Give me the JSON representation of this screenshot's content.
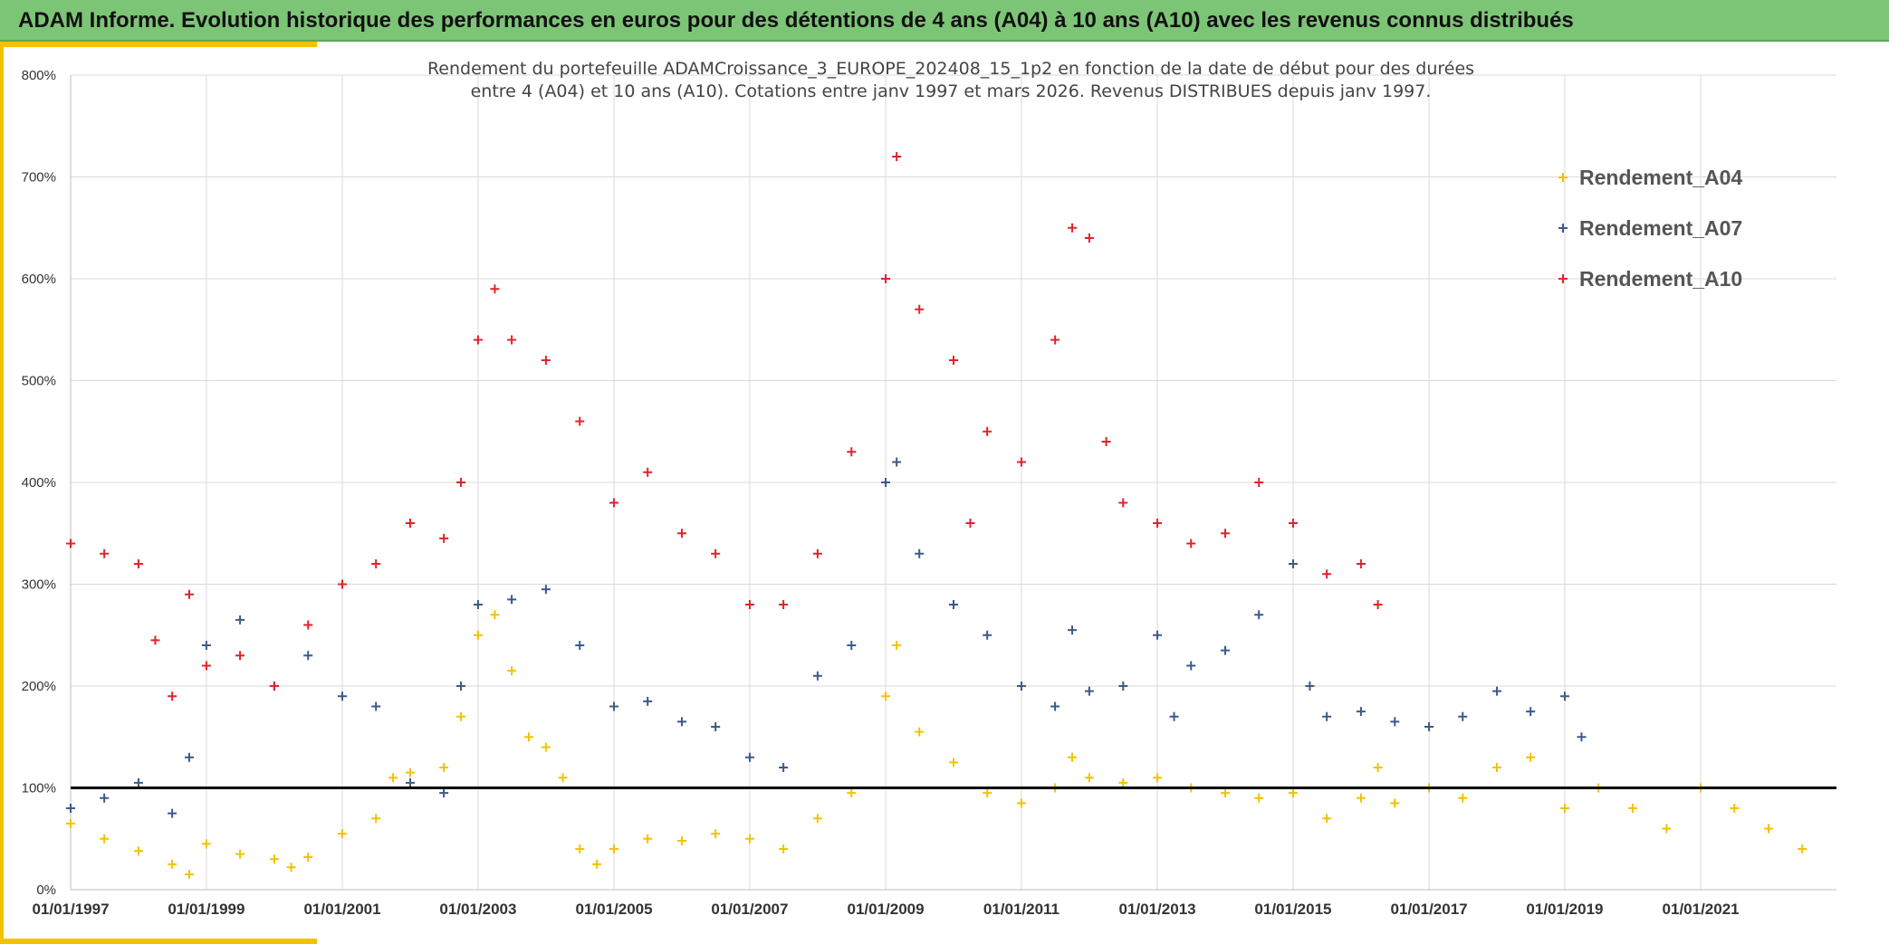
{
  "header": {
    "title": "ADAM Informe. Evolution historique des performances en euros pour des détentions de 4 ans (A04) à 10 ans (A10) avec les revenus connus distribués"
  },
  "colors": {
    "banner": "#7cc576",
    "accent": "#f2c200",
    "A04": "#f2c200",
    "A07": "#3c5a8a",
    "A10": "#e0242a",
    "reference_line": "#000000"
  },
  "chart_data": {
    "type": "scatter",
    "title_line1": "Rendement du portefeuille ADAMCroissance_3_EUROPE_202408_15_1p2  en fonction de la date de début pour des durées",
    "title_line2": "entre 4 (A04) et 10 ans (A10). Cotations entre janv 1997 et mars 2026. Revenus DISTRIBUES depuis janv 1997.",
    "x_axis": {
      "type": "date",
      "min": "1997-01-01",
      "max": "2023-01-01",
      "tick_labels": [
        "01/01/1997",
        "01/01/1999",
        "01/01/2001",
        "01/01/2003",
        "01/01/2005",
        "01/01/2007",
        "01/01/2009",
        "01/01/2011",
        "01/01/2013",
        "01/01/2015",
        "01/01/2017",
        "01/01/2019",
        "01/01/2021"
      ],
      "tick_dates": [
        "1997-01-01",
        "1999-01-01",
        "2001-01-01",
        "2003-01-01",
        "2005-01-01",
        "2007-01-01",
        "2009-01-01",
        "2011-01-01",
        "2013-01-01",
        "2015-01-01",
        "2017-01-01",
        "2019-01-01",
        "2021-01-01"
      ]
    },
    "y_axis": {
      "min": 0,
      "max": 800,
      "unit": "%",
      "tick_values": [
        0,
        100,
        200,
        300,
        400,
        500,
        600,
        700,
        800
      ],
      "tick_labels": [
        "0%",
        "100%",
        "200%",
        "300%",
        "400%",
        "500%",
        "600%",
        "700%",
        "800%"
      ]
    },
    "grid": true,
    "legend_position": "top-right",
    "reference_line": {
      "y": 100
    },
    "marker": "+",
    "series": [
      {
        "name": "Rendement_A04",
        "x": [
          "1997-01-01",
          "1997-07-01",
          "1998-01-01",
          "1998-07-01",
          "1998-10-01",
          "1999-01-01",
          "1999-07-01",
          "2000-01-01",
          "2000-04-01",
          "2000-07-01",
          "2001-01-01",
          "2001-07-01",
          "2001-10-01",
          "2002-01-01",
          "2002-07-01",
          "2002-10-01",
          "2003-01-01",
          "2003-04-01",
          "2003-07-01",
          "2003-10-01",
          "2004-01-01",
          "2004-04-01",
          "2004-07-01",
          "2004-10-01",
          "2005-01-01",
          "2005-07-01",
          "2006-01-01",
          "2006-07-01",
          "2007-01-01",
          "2007-07-01",
          "2008-01-01",
          "2008-07-01",
          "2009-01-01",
          "2009-03-01",
          "2009-07-01",
          "2010-01-01",
          "2010-07-01",
          "2011-01-01",
          "2011-07-01",
          "2011-10-01",
          "2012-01-01",
          "2012-07-01",
          "2013-01-01",
          "2013-07-01",
          "2014-01-01",
          "2014-07-01",
          "2015-01-01",
          "2015-07-01",
          "2016-01-01",
          "2016-04-01",
          "2016-07-01",
          "2017-01-01",
          "2017-07-01",
          "2018-01-01",
          "2018-07-01",
          "2019-01-01",
          "2019-07-01",
          "2020-01-01",
          "2020-07-01",
          "2021-01-01",
          "2021-07-01",
          "2022-01-01",
          "2022-07-01"
        ],
        "y": [
          65,
          50,
          38,
          25,
          15,
          45,
          35,
          30,
          22,
          32,
          55,
          70,
          110,
          115,
          120,
          170,
          250,
          270,
          215,
          150,
          140,
          110,
          40,
          25,
          40,
          50,
          48,
          55,
          50,
          40,
          70,
          95,
          190,
          240,
          155,
          125,
          95,
          85,
          100,
          130,
          110,
          105,
          110,
          100,
          95,
          90,
          95,
          70,
          90,
          120,
          85,
          100,
          90,
          120,
          130,
          80,
          100,
          80,
          60,
          100,
          80,
          60,
          40
        ]
      },
      {
        "name": "Rendement_A07",
        "x": [
          "1997-01-01",
          "1997-07-01",
          "1998-01-01",
          "1998-07-01",
          "1998-10-01",
          "1999-01-01",
          "1999-07-01",
          "2000-01-01",
          "2000-07-01",
          "2001-01-01",
          "2001-07-01",
          "2002-01-01",
          "2002-07-01",
          "2002-10-01",
          "2003-01-01",
          "2003-07-01",
          "2004-01-01",
          "2004-07-01",
          "2005-01-01",
          "2005-07-01",
          "2006-01-01",
          "2006-07-01",
          "2007-01-01",
          "2007-07-01",
          "2008-01-01",
          "2008-07-01",
          "2009-01-01",
          "2009-03-01",
          "2009-07-01",
          "2010-01-01",
          "2010-07-01",
          "2011-01-01",
          "2011-07-01",
          "2011-10-01",
          "2012-01-01",
          "2012-07-01",
          "2013-01-01",
          "2013-04-01",
          "2013-07-01",
          "2014-01-01",
          "2014-07-01",
          "2015-01-01",
          "2015-04-01",
          "2015-07-01",
          "2016-01-01",
          "2016-07-01",
          "2017-01-01",
          "2017-07-01",
          "2018-01-01",
          "2018-07-01",
          "2019-01-01",
          "2019-04-01"
        ],
        "y": [
          80,
          90,
          105,
          75,
          130,
          240,
          265,
          200,
          230,
          190,
          180,
          105,
          95,
          200,
          280,
          285,
          295,
          240,
          180,
          185,
          165,
          160,
          130,
          120,
          210,
          240,
          400,
          420,
          330,
          280,
          250,
          200,
          180,
          255,
          195,
          200,
          250,
          170,
          220,
          235,
          270,
          320,
          200,
          170,
          175,
          165,
          160,
          170,
          195,
          175,
          190,
          150
        ]
      },
      {
        "name": "Rendement_A10",
        "x": [
          "1997-01-01",
          "1997-07-01",
          "1998-01-01",
          "1998-04-01",
          "1998-07-01",
          "1998-10-01",
          "1999-01-01",
          "1999-07-01",
          "2000-01-01",
          "2000-07-01",
          "2001-01-01",
          "2001-07-01",
          "2002-01-01",
          "2002-07-01",
          "2002-10-01",
          "2003-01-01",
          "2003-04-01",
          "2003-07-01",
          "2004-01-01",
          "2004-07-01",
          "2005-01-01",
          "2005-07-01",
          "2006-01-01",
          "2006-07-01",
          "2007-01-01",
          "2007-07-01",
          "2008-01-01",
          "2008-07-01",
          "2009-01-01",
          "2009-03-01",
          "2009-07-01",
          "2010-01-01",
          "2010-04-01",
          "2010-07-01",
          "2011-01-01",
          "2011-07-01",
          "2011-10-01",
          "2012-01-01",
          "2012-04-01",
          "2012-07-01",
          "2013-01-01",
          "2013-07-01",
          "2014-01-01",
          "2014-07-01",
          "2015-01-01",
          "2015-07-01",
          "2016-01-01",
          "2016-04-01"
        ],
        "y": [
          340,
          330,
          320,
          245,
          190,
          290,
          220,
          230,
          200,
          260,
          300,
          320,
          360,
          345,
          400,
          540,
          590,
          540,
          520,
          460,
          380,
          410,
          350,
          330,
          280,
          280,
          330,
          430,
          600,
          720,
          570,
          520,
          360,
          450,
          420,
          540,
          650,
          640,
          440,
          380,
          360,
          340,
          350,
          400,
          360,
          310,
          320,
          280
        ]
      }
    ]
  }
}
